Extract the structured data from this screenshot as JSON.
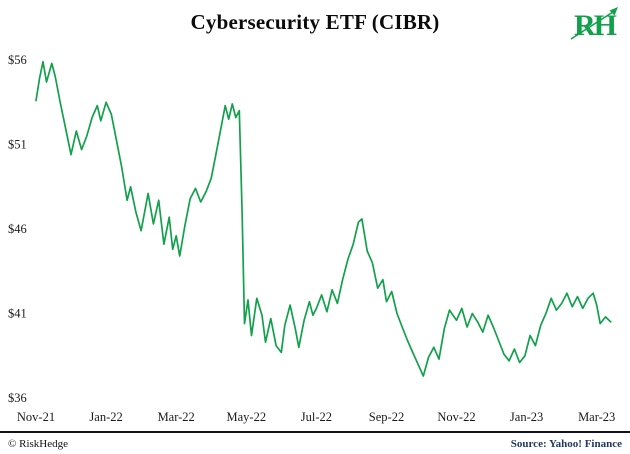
{
  "page": {
    "title": "Cybersecurity ETF (CIBR)",
    "logo_text": "RH",
    "footer_left": "© RiskHedge",
    "footer_right": "Source: Yahoo! Finance"
  },
  "colors": {
    "line": "#12A14B",
    "logo": "#12A14B",
    "axis_text": "#1a1a1a",
    "divider": "#101028",
    "source_text": "#203864"
  },
  "chart_data": {
    "type": "line",
    "title": "Cybersecurity ETF (CIBR)",
    "series_name": "CIBR share price (USD)",
    "x_unit": "months since Nov 2021",
    "xlim": [
      0,
      16.55
    ],
    "ylim": [
      36,
      56
    ],
    "grid": false,
    "legend": false,
    "y_ticks": [
      {
        "value": 56,
        "label": "$56"
      },
      {
        "value": 51,
        "label": "$51"
      },
      {
        "value": 46,
        "label": "$46"
      },
      {
        "value": 41,
        "label": "$41"
      },
      {
        "value": 36,
        "label": "$36"
      }
    ],
    "x_ticks": [
      {
        "pos": 0,
        "label": "Nov-21"
      },
      {
        "pos": 2,
        "label": "Jan-22"
      },
      {
        "pos": 4,
        "label": "Mar-22"
      },
      {
        "pos": 6,
        "label": "May-22"
      },
      {
        "pos": 8,
        "label": "Jul-22"
      },
      {
        "pos": 10,
        "label": "Sep-22"
      },
      {
        "pos": 12,
        "label": "Nov-22"
      },
      {
        "pos": 14,
        "label": "Jan-23"
      },
      {
        "pos": 16,
        "label": "Mar-23"
      }
    ],
    "points": [
      [
        0,
        53.6
      ],
      [
        0.1,
        54.9
      ],
      [
        0.2,
        55.9
      ],
      [
        0.3,
        54.7
      ],
      [
        0.45,
        55.8
      ],
      [
        0.55,
        55.0
      ],
      [
        0.7,
        53.4
      ],
      [
        0.85,
        51.9
      ],
      [
        1,
        50.4
      ],
      [
        1.15,
        51.8
      ],
      [
        1.3,
        50.7
      ],
      [
        1.45,
        51.5
      ],
      [
        1.6,
        52.6
      ],
      [
        1.75,
        53.3
      ],
      [
        1.85,
        52.4
      ],
      [
        2,
        53.5
      ],
      [
        2.15,
        52.8
      ],
      [
        2.3,
        51.2
      ],
      [
        2.45,
        49.6
      ],
      [
        2.6,
        47.7
      ],
      [
        2.7,
        48.5
      ],
      [
        2.85,
        47.0
      ],
      [
        3,
        45.9
      ],
      [
        3.1,
        47.0
      ],
      [
        3.2,
        48.1
      ],
      [
        3.35,
        46.3
      ],
      [
        3.5,
        47.7
      ],
      [
        3.65,
        45.1
      ],
      [
        3.8,
        46.7
      ],
      [
        3.9,
        44.8
      ],
      [
        4,
        45.6
      ],
      [
        4.1,
        44.4
      ],
      [
        4.25,
        46.2
      ],
      [
        4.4,
        47.8
      ],
      [
        4.55,
        48.4
      ],
      [
        4.7,
        47.6
      ],
      [
        4.85,
        48.2
      ],
      [
        5,
        49.0
      ],
      [
        5.15,
        50.6
      ],
      [
        5.3,
        52.2
      ],
      [
        5.4,
        53.3
      ],
      [
        5.5,
        52.5
      ],
      [
        5.6,
        53.4
      ],
      [
        5.7,
        52.6
      ],
      [
        5.8,
        53.0
      ],
      [
        5.88,
        47.0
      ],
      [
        5.95,
        40.4
      ],
      [
        6.05,
        41.8
      ],
      [
        6.15,
        39.7
      ],
      [
        6.3,
        41.9
      ],
      [
        6.45,
        40.9
      ],
      [
        6.55,
        39.3
      ],
      [
        6.7,
        40.7
      ],
      [
        6.85,
        39.1
      ],
      [
        7,
        38.7
      ],
      [
        7.1,
        40.3
      ],
      [
        7.25,
        41.5
      ],
      [
        7.4,
        40.1
      ],
      [
        7.5,
        39.0
      ],
      [
        7.65,
        40.6
      ],
      [
        7.8,
        41.7
      ],
      [
        7.9,
        40.9
      ],
      [
        8,
        41.3
      ],
      [
        8.15,
        42.1
      ],
      [
        8.3,
        41.1
      ],
      [
        8.45,
        42.4
      ],
      [
        8.6,
        41.6
      ],
      [
        8.75,
        43.0
      ],
      [
        8.9,
        44.2
      ],
      [
        9.05,
        45.1
      ],
      [
        9.2,
        46.4
      ],
      [
        9.3,
        46.6
      ],
      [
        9.45,
        44.7
      ],
      [
        9.6,
        44.0
      ],
      [
        9.75,
        42.5
      ],
      [
        9.9,
        43.0
      ],
      [
        10,
        41.7
      ],
      [
        10.15,
        42.3
      ],
      [
        10.3,
        41.0
      ],
      [
        10.45,
        40.2
      ],
      [
        10.6,
        39.4
      ],
      [
        10.75,
        38.7
      ],
      [
        10.9,
        38.0
      ],
      [
        11.05,
        37.3
      ],
      [
        11.2,
        38.4
      ],
      [
        11.35,
        39.0
      ],
      [
        11.5,
        38.3
      ],
      [
        11.65,
        40.1
      ],
      [
        11.8,
        41.2
      ],
      [
        12,
        40.6
      ],
      [
        12.15,
        41.3
      ],
      [
        12.3,
        40.2
      ],
      [
        12.45,
        41.0
      ],
      [
        12.6,
        40.5
      ],
      [
        12.75,
        39.9
      ],
      [
        12.9,
        40.9
      ],
      [
        13.05,
        40.2
      ],
      [
        13.2,
        39.4
      ],
      [
        13.35,
        38.6
      ],
      [
        13.5,
        38.2
      ],
      [
        13.65,
        38.9
      ],
      [
        13.8,
        38.1
      ],
      [
        13.95,
        38.5
      ],
      [
        14.1,
        39.7
      ],
      [
        14.25,
        39.1
      ],
      [
        14.4,
        40.3
      ],
      [
        14.55,
        41.0
      ],
      [
        14.7,
        41.9
      ],
      [
        14.85,
        41.2
      ],
      [
        15,
        41.6
      ],
      [
        15.15,
        42.2
      ],
      [
        15.3,
        41.4
      ],
      [
        15.45,
        42.0
      ],
      [
        15.6,
        41.3
      ],
      [
        15.75,
        41.9
      ],
      [
        15.9,
        42.2
      ],
      [
        16,
        41.5
      ],
      [
        16.1,
        40.4
      ],
      [
        16.25,
        40.8
      ],
      [
        16.4,
        40.5
      ]
    ]
  }
}
